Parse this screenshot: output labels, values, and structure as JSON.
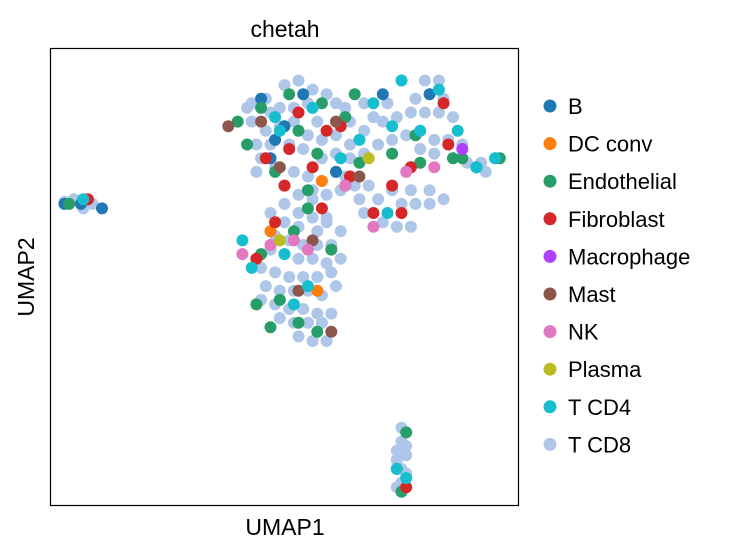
{
  "chart_data": {
    "type": "scatter",
    "title": "chetah",
    "xlabel": "UMAP1",
    "ylabel": "UMAP2",
    "xlim": [
      0,
      100
    ],
    "ylim": [
      0,
      100
    ],
    "grid": false,
    "ticks": false,
    "legend_position": "right",
    "series": [
      {
        "name": "B",
        "color": "#1f77b4",
        "points": [
          [
            6.5,
            66
          ],
          [
            11,
            65
          ],
          [
            3,
            66
          ],
          [
            47,
            76
          ],
          [
            50,
            83
          ],
          [
            61,
            73
          ],
          [
            77,
            74
          ],
          [
            71,
            90
          ],
          [
            45,
            89
          ],
          [
            63,
            70
          ],
          [
            54,
            90
          ],
          [
            48,
            80
          ],
          [
            81,
            90
          ]
        ]
      },
      {
        "name": "DC conv",
        "color": "#ff7f0e",
        "points": [
          [
            58,
            71
          ],
          [
            57,
            47
          ],
          [
            47,
            60
          ]
        ]
      },
      {
        "name": "Endothelial",
        "color": "#279e68",
        "points": [
          [
            4,
            66
          ],
          [
            40,
            84
          ],
          [
            45,
            87
          ],
          [
            51,
            90
          ],
          [
            53,
            82
          ],
          [
            58,
            88
          ],
          [
            66,
            75
          ],
          [
            73,
            77
          ],
          [
            63,
            85
          ],
          [
            52,
            60
          ],
          [
            55,
            65
          ],
          [
            45,
            55
          ],
          [
            44,
            44
          ],
          [
            49,
            45
          ],
          [
            53,
            40
          ],
          [
            57,
            38
          ],
          [
            60,
            56
          ],
          [
            47,
            39
          ],
          [
            78,
            81
          ],
          [
            86,
            76
          ],
          [
            88,
            76
          ],
          [
            96,
            76
          ],
          [
            76,
            16
          ],
          [
            74,
            8
          ],
          [
            75,
            3
          ],
          [
            48,
            73
          ],
          [
            55,
            69
          ],
          [
            57,
            77
          ],
          [
            42,
            79
          ],
          [
            65,
            90
          ],
          [
            79,
            75
          ],
          [
            91,
            74
          ]
        ]
      },
      {
        "name": "Fibroblast",
        "color": "#d62728",
        "points": [
          [
            8,
            67
          ],
          [
            50,
            70
          ],
          [
            46,
            76
          ],
          [
            59,
            82
          ],
          [
            64,
            72
          ],
          [
            75,
            64
          ],
          [
            69,
            64
          ],
          [
            77,
            74
          ],
          [
            76,
            4
          ],
          [
            48,
            62
          ],
          [
            51,
            78
          ],
          [
            56,
            74
          ],
          [
            58,
            65
          ],
          [
            84,
            88
          ],
          [
            85,
            79
          ],
          [
            62,
            83
          ],
          [
            53,
            86
          ],
          [
            44,
            54
          ],
          [
            73,
            70
          ]
        ]
      },
      {
        "name": "Macrophage",
        "color": "#b040fd",
        "points": [
          [
            88,
            78
          ]
        ]
      },
      {
        "name": "Mast",
        "color": "#8c564b",
        "points": [
          [
            45,
            84
          ],
          [
            38,
            83
          ],
          [
            61,
            84
          ],
          [
            66,
            72
          ],
          [
            53,
            47
          ],
          [
            60,
            38
          ],
          [
            49,
            74
          ],
          [
            56,
            58
          ]
        ]
      },
      {
        "name": "NK",
        "color": "#e377c2",
        "points": [
          [
            52,
            58
          ],
          [
            47,
            57
          ],
          [
            41,
            55
          ],
          [
            82,
            74
          ],
          [
            69,
            61
          ],
          [
            55,
            56
          ],
          [
            63,
            70
          ],
          [
            76,
            73
          ]
        ]
      },
      {
        "name": "Plasma",
        "color": "#bcbd22",
        "points": [
          [
            68,
            76
          ],
          [
            49,
            58
          ]
        ]
      },
      {
        "name": "T CD4",
        "color": "#17becf",
        "points": [
          [
            7,
            67
          ],
          [
            49,
            82
          ],
          [
            56,
            87
          ],
          [
            69,
            88
          ],
          [
            75,
            93
          ],
          [
            79,
            82
          ],
          [
            83,
            91
          ],
          [
            87,
            82
          ],
          [
            91,
            74
          ],
          [
            95,
            76
          ],
          [
            52,
            44
          ],
          [
            50,
            55
          ],
          [
            43,
            52
          ],
          [
            55,
            48
          ],
          [
            72,
            64
          ],
          [
            74,
            8
          ],
          [
            76,
            6
          ],
          [
            62,
            76
          ],
          [
            66,
            80
          ],
          [
            41,
            58
          ],
          [
            48,
            85
          ],
          [
            73,
            83
          ]
        ]
      },
      {
        "name": "T CD8",
        "color": "#aec7e8",
        "points": [
          [
            5,
            67
          ],
          [
            9,
            66
          ],
          [
            3,
            66.5
          ],
          [
            7,
            65
          ],
          [
            43,
            88
          ],
          [
            46,
            89
          ],
          [
            49,
            87
          ],
          [
            52,
            87
          ],
          [
            55,
            88
          ],
          [
            57,
            84
          ],
          [
            59,
            90
          ],
          [
            43,
            84
          ],
          [
            46,
            82
          ],
          [
            49,
            83
          ],
          [
            52,
            84
          ],
          [
            55,
            81
          ],
          [
            58,
            80
          ],
          [
            61,
            81
          ],
          [
            64,
            84
          ],
          [
            44,
            79
          ],
          [
            47,
            79
          ],
          [
            51,
            79
          ],
          [
            54,
            78
          ],
          [
            58,
            76
          ],
          [
            61,
            77
          ],
          [
            64,
            79
          ],
          [
            67,
            82
          ],
          [
            45,
            76
          ],
          [
            48,
            74
          ],
          [
            52,
            73
          ],
          [
            55,
            72
          ],
          [
            58,
            71
          ],
          [
            61,
            73
          ],
          [
            64,
            76
          ],
          [
            67,
            77
          ],
          [
            70,
            79
          ],
          [
            73,
            80
          ],
          [
            76,
            81
          ],
          [
            79,
            82
          ],
          [
            82,
            80
          ],
          [
            85,
            80
          ],
          [
            88,
            79
          ],
          [
            71,
            84
          ],
          [
            74,
            85
          ],
          [
            77,
            86
          ],
          [
            80,
            86
          ],
          [
            83,
            86
          ],
          [
            86,
            85
          ],
          [
            79,
            78
          ],
          [
            82,
            77
          ],
          [
            86,
            76
          ],
          [
            89,
            75
          ],
          [
            92,
            75
          ],
          [
            95,
            76
          ],
          [
            93,
            73
          ],
          [
            80,
            93
          ],
          [
            83,
            93
          ],
          [
            78,
            89
          ],
          [
            84,
            89
          ],
          [
            50,
            70
          ],
          [
            53,
            68
          ],
          [
            56,
            67
          ],
          [
            59,
            68
          ],
          [
            62,
            69
          ],
          [
            65,
            70
          ],
          [
            68,
            70
          ],
          [
            50,
            66
          ],
          [
            53,
            64
          ],
          [
            56,
            63
          ],
          [
            59,
            62
          ],
          [
            47,
            64
          ],
          [
            50,
            62
          ],
          [
            53,
            61
          ],
          [
            57,
            60
          ],
          [
            75,
            66
          ],
          [
            78,
            66
          ],
          [
            81,
            66
          ],
          [
            84,
            67
          ],
          [
            73,
            69
          ],
          [
            77,
            69
          ],
          [
            81,
            69
          ],
          [
            71,
            62
          ],
          [
            74,
            61
          ],
          [
            77,
            61
          ],
          [
            48,
            59
          ],
          [
            51,
            58
          ],
          [
            54,
            57
          ],
          [
            57,
            57
          ],
          [
            60,
            57
          ],
          [
            47,
            56
          ],
          [
            50,
            55
          ],
          [
            53,
            54
          ],
          [
            56,
            54
          ],
          [
            59,
            53
          ],
          [
            62,
            54
          ],
          [
            45,
            52
          ],
          [
            48,
            51
          ],
          [
            51,
            50
          ],
          [
            54,
            50
          ],
          [
            57,
            50
          ],
          [
            60,
            51
          ],
          [
            46,
            48
          ],
          [
            49,
            47
          ],
          [
            52,
            47
          ],
          [
            55,
            47
          ],
          [
            58,
            46
          ],
          [
            48,
            44
          ],
          [
            51,
            43
          ],
          [
            54,
            43
          ],
          [
            57,
            42
          ],
          [
            60,
            42
          ],
          [
            49,
            41
          ],
          [
            52,
            40
          ],
          [
            55,
            40
          ],
          [
            58,
            40
          ],
          [
            53,
            37
          ],
          [
            56,
            36
          ],
          [
            59,
            36
          ],
          [
            75,
            17
          ],
          [
            75,
            14
          ],
          [
            74,
            12
          ],
          [
            76,
            11
          ],
          [
            74,
            10
          ],
          [
            75,
            8
          ],
          [
            76,
            7
          ],
          [
            75,
            5
          ],
          [
            74,
            4
          ],
          [
            76,
            13
          ],
          [
            47,
            86
          ],
          [
            63,
            87
          ],
          [
            42,
            87
          ],
          [
            50,
            92
          ],
          [
            53,
            93
          ],
          [
            56,
            91
          ],
          [
            61,
            88
          ],
          [
            67,
            88
          ],
          [
            69,
            85
          ],
          [
            72,
            88
          ],
          [
            44,
            73
          ],
          [
            56,
            69
          ],
          [
            63,
            72
          ],
          [
            66,
            67
          ],
          [
            59,
            63
          ],
          [
            62,
            60
          ],
          [
            67,
            64
          ],
          [
            70,
            67
          ],
          [
            45,
            45
          ],
          [
            61,
            48
          ]
        ]
      }
    ]
  }
}
